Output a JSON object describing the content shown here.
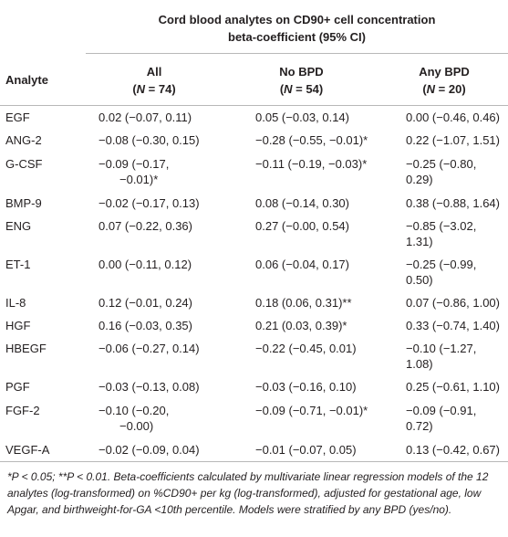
{
  "table": {
    "spanner_line1": "Cord blood analytes on CD90+ cell concentration",
    "spanner_line2": "beta-coefficient (95% CI)",
    "columns": {
      "analyte": "Analyte",
      "all": "All",
      "all_n_prefix": "(",
      "all_n_label": "N",
      "all_n_value": " = 74)",
      "no_bpd": "No BPD",
      "no_bpd_n_prefix": "(",
      "no_bpd_n_label": "N",
      "no_bpd_n_value": " = 54)",
      "any_bpd": "Any BPD",
      "any_bpd_n_prefix": "(",
      "any_bpd_n_label": "N",
      "any_bpd_n_value": " = 20)"
    },
    "rows": [
      {
        "analyte": "EGF",
        "all": "0.02 (−0.07, 0.11)",
        "no_bpd": "0.05 (−0.03, 0.14)",
        "any_bpd": "0.00 (−0.46, 0.46)"
      },
      {
        "analyte": "ANG-2",
        "all": "−0.08 (−0.30, 0.15)",
        "no_bpd": "−0.28 (−0.55, −0.01)*",
        "any_bpd": "0.22 (−1.07, 1.51)"
      },
      {
        "analyte": "G-CSF",
        "all_l1": "−0.09 (−0.17,",
        "all_l2": "−0.01)*",
        "no_bpd": "−0.11 (−0.19, −0.03)*",
        "any_bpd": "−0.25 (−0.80, 0.29)"
      },
      {
        "analyte": "BMP-9",
        "all": "−0.02 (−0.17, 0.13)",
        "no_bpd": "0.08 (−0.14, 0.30)",
        "any_bpd": "0.38 (−0.88, 1.64)"
      },
      {
        "analyte": "ENG",
        "all": "0.07 (−0.22, 0.36)",
        "no_bpd": "0.27 (−0.00, 0.54)",
        "any_bpd": "−0.85 (−3.02, 1.31)"
      },
      {
        "analyte": "ET-1",
        "all": "0.00 (−0.11, 0.12)",
        "no_bpd": "0.06 (−0.04, 0.17)",
        "any_bpd": "−0.25 (−0.99, 0.50)"
      },
      {
        "analyte": "IL-8",
        "all": "0.12 (−0.01, 0.24)",
        "no_bpd": "0.18 (0.06, 0.31)**",
        "any_bpd": "0.07 (−0.86, 1.00)"
      },
      {
        "analyte": "HGF",
        "all": "0.16 (−0.03, 0.35)",
        "no_bpd": "0.21 (0.03, 0.39)*",
        "any_bpd": "0.33 (−0.74, 1.40)"
      },
      {
        "analyte": "HBEGF",
        "all": "−0.06 (−0.27, 0.14)",
        "no_bpd": "−0.22 (−0.45, 0.01)",
        "any_bpd": "−0.10 (−1.27, 1.08)"
      },
      {
        "analyte": "PGF",
        "all": "−0.03 (−0.13, 0.08)",
        "no_bpd": "−0.03 (−0.16, 0.10)",
        "any_bpd": "0.25 (−0.61, 1.10)"
      },
      {
        "analyte": "FGF-2",
        "all_l1": "−0.10 (−0.20,",
        "all_l2": "−0.00)",
        "no_bpd": "−0.09 (−0.71, −0.01)*",
        "any_bpd": "−0.09 (−0.91, 0.72)"
      },
      {
        "analyte": "VEGF-A",
        "all": "−0.02 (−0.09, 0.04)",
        "no_bpd": "−0.01 (−0.07, 0.05)",
        "any_bpd": "0.13 (−0.42, 0.67)"
      }
    ],
    "footnote": "*P < 0.05; **P < 0.01. Beta-coefficients calculated by multivariate linear regression models of the 12 analytes (log-transformed) on %CD90+ per kg (log-transformed), adjusted for gestational age, low Apgar, and birthweight-for-GA <10th percentile. Models were stratified by any BPD (yes/no)."
  }
}
